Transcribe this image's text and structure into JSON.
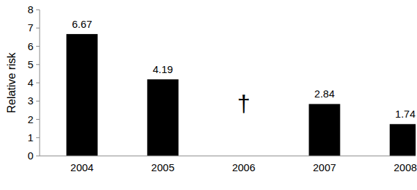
{
  "chart_data": {
    "type": "bar",
    "y_label": "Relative risk",
    "categories": [
      "2004",
      "2005",
      "2006",
      "2007",
      "2008"
    ],
    "values": [
      6.67,
      4.19,
      null,
      2.84,
      1.74
    ],
    "color": "#000000",
    "ylim": [
      0,
      8
    ],
    "yticks": [
      0,
      1,
      2,
      3,
      4,
      5,
      6,
      7,
      8
    ],
    "data_labels": true,
    "grid": false,
    "annotations": [
      {
        "text": "†",
        "category": "2006"
      }
    ]
  }
}
